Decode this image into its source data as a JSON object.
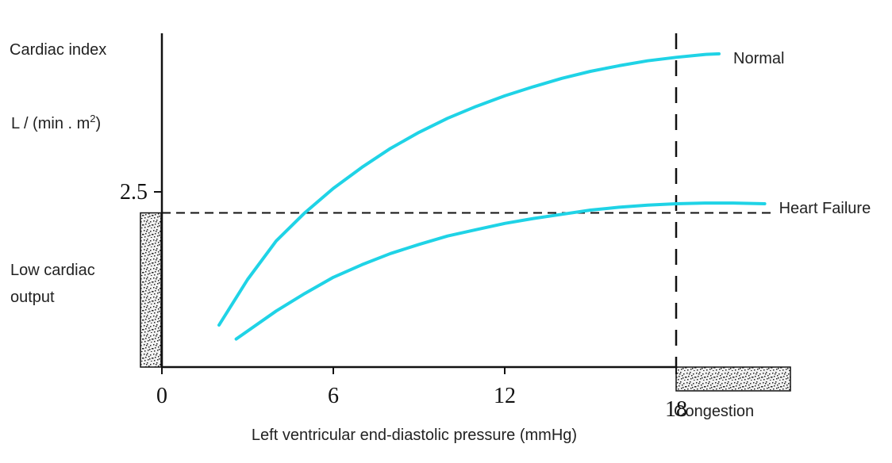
{
  "chart_data": {
    "type": "line",
    "ylabel_line1": "Cardiac index",
    "ylabel_line2_prefix": "L / (min . m",
    "ylabel_line2_sup": "2",
    "ylabel_line2_suffix": ")",
    "xlabel": "Left ventricular end-diastolic pressure (mmHg)",
    "x_ticks": [
      "0",
      "6",
      "12",
      "18"
    ],
    "y_ticks": [
      "2.5"
    ],
    "xlim": [
      0,
      22
    ],
    "ylim": [
      0,
      5
    ],
    "reference_lines": {
      "vertical_x": 18,
      "horizontal_y": 2.2
    },
    "regions": {
      "low_output_label_line1": "Low cardiac",
      "low_output_label_line2": "output",
      "congestion_label": "Congestion"
    },
    "series": [
      {
        "name": "Normal",
        "color": "#1fd3e6",
        "x": [
          2.0,
          3.0,
          4.0,
          5.0,
          6.0,
          7.0,
          8.0,
          9.0,
          10.0,
          11.0,
          12.0,
          13.0,
          14.0,
          15.0,
          16.0,
          17.0,
          18.0,
          19.0,
          19.5
        ],
        "y": [
          0.6,
          1.25,
          1.8,
          2.2,
          2.55,
          2.85,
          3.12,
          3.35,
          3.55,
          3.72,
          3.87,
          4.0,
          4.12,
          4.22,
          4.3,
          4.37,
          4.42,
          4.46,
          4.47
        ]
      },
      {
        "name": "Heart Failure",
        "color": "#1fd3e6",
        "x": [
          2.6,
          4.0,
          5.0,
          6.0,
          7.0,
          8.0,
          9.0,
          10.0,
          11.0,
          12.0,
          13.0,
          14.0,
          15.0,
          16.0,
          17.0,
          18.0,
          19.0,
          20.0,
          21.1
        ],
        "y": [
          0.4,
          0.8,
          1.05,
          1.28,
          1.46,
          1.62,
          1.75,
          1.87,
          1.96,
          2.05,
          2.12,
          2.18,
          2.24,
          2.28,
          2.31,
          2.33,
          2.34,
          2.34,
          2.33
        ]
      }
    ]
  }
}
